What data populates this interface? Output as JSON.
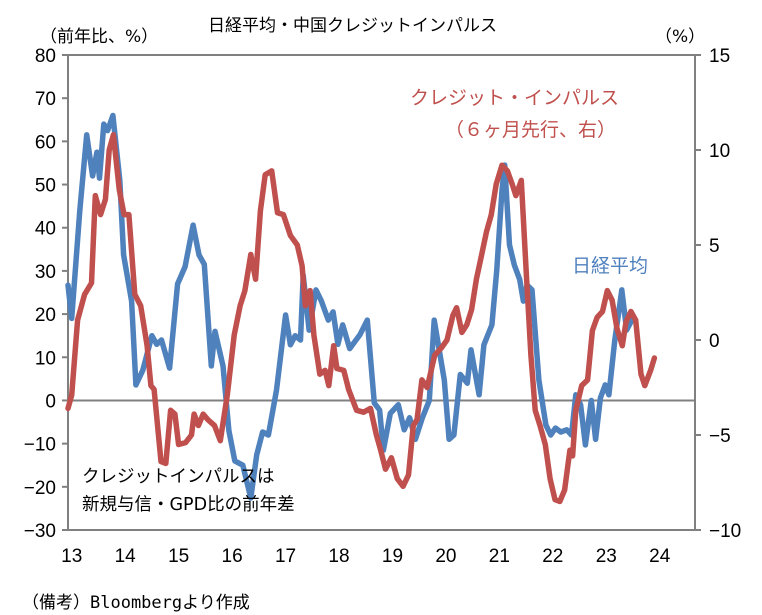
{
  "chart_data": {
    "type": "line",
    "title": "日経平均・中国クレジットインパルス",
    "left_axis": {
      "unit_label": "（前年比、%）",
      "ylim": [
        -30,
        80
      ],
      "ticks": [
        80,
        70,
        60,
        50,
        40,
        30,
        20,
        10,
        0,
        -10,
        -20,
        -30
      ]
    },
    "right_axis": {
      "unit_label": "（%）",
      "ylim": [
        -10,
        15
      ],
      "ticks": [
        15,
        10,
        5,
        0,
        -5,
        -10
      ]
    },
    "x_axis": {
      "xlim": [
        2012.93,
        2024.66
      ],
      "tick_values": [
        2013,
        2014,
        2015,
        2016,
        2017,
        2018,
        2019,
        2020,
        2021,
        2022,
        2023,
        2024
      ],
      "tick_labels": [
        "13",
        "14",
        "15",
        "16",
        "17",
        "18",
        "19",
        "20",
        "21",
        "22",
        "23",
        "24"
      ]
    },
    "grid": false,
    "series": [
      {
        "name": "日経平均",
        "axis": "left",
        "color": "#4f81bd",
        "points": [
          [
            2012.93,
            26.7
          ],
          [
            2013.0,
            19.0
          ],
          [
            2013.15,
            44.0
          ],
          [
            2013.28,
            61.5
          ],
          [
            2013.39,
            52.0
          ],
          [
            2013.47,
            57.5
          ],
          [
            2013.52,
            51.5
          ],
          [
            2013.6,
            64.0
          ],
          [
            2013.67,
            62.5
          ],
          [
            2013.77,
            66.0
          ],
          [
            2013.9,
            51.0
          ],
          [
            2013.97,
            33.7
          ],
          [
            2014.12,
            23.0
          ],
          [
            2014.2,
            3.6
          ],
          [
            2014.33,
            7.0
          ],
          [
            2014.5,
            15.0
          ],
          [
            2014.59,
            13.0
          ],
          [
            2014.68,
            14.0
          ],
          [
            2014.83,
            7.5
          ],
          [
            2014.98,
            27.0
          ],
          [
            2015.12,
            31.0
          ],
          [
            2015.27,
            40.6
          ],
          [
            2015.38,
            33.7
          ],
          [
            2015.48,
            31.5
          ],
          [
            2015.61,
            8.0
          ],
          [
            2015.68,
            16.0
          ],
          [
            2015.83,
            8.0
          ],
          [
            2015.94,
            -7.0
          ],
          [
            2016.05,
            -14.0
          ],
          [
            2016.2,
            -15.0
          ],
          [
            2016.35,
            -22.6
          ],
          [
            2016.46,
            -12.6
          ],
          [
            2016.57,
            -7.3
          ],
          [
            2016.68,
            -8.0
          ],
          [
            2016.83,
            2.4
          ],
          [
            2017.0,
            19.8
          ],
          [
            2017.09,
            12.9
          ],
          [
            2017.18,
            15.0
          ],
          [
            2017.28,
            14.0
          ],
          [
            2017.33,
            29.0
          ],
          [
            2017.44,
            16.3
          ],
          [
            2017.57,
            25.6
          ],
          [
            2017.67,
            23.0
          ],
          [
            2017.8,
            18.6
          ],
          [
            2017.89,
            20.5
          ],
          [
            2017.98,
            13.0
          ],
          [
            2018.07,
            17.5
          ],
          [
            2018.2,
            12.0
          ],
          [
            2018.39,
            15.2
          ],
          [
            2018.53,
            18.6
          ],
          [
            2018.66,
            -0.6
          ],
          [
            2018.76,
            -2.2
          ],
          [
            2018.83,
            -11.5
          ],
          [
            2018.96,
            -3.0
          ],
          [
            2019.11,
            -1.0
          ],
          [
            2019.22,
            -6.8
          ],
          [
            2019.32,
            -4.0
          ],
          [
            2019.43,
            -9.0
          ],
          [
            2019.56,
            -4.0
          ],
          [
            2019.69,
            0.0
          ],
          [
            2019.78,
            18.6
          ],
          [
            2019.97,
            4.7
          ],
          [
            2020.06,
            -9.0
          ],
          [
            2020.15,
            -8.0
          ],
          [
            2020.27,
            6.0
          ],
          [
            2020.4,
            4.0
          ],
          [
            2020.47,
            11.7
          ],
          [
            2020.62,
            1.3
          ],
          [
            2020.71,
            12.9
          ],
          [
            2020.86,
            17.5
          ],
          [
            2020.95,
            30.0
          ],
          [
            2021.05,
            48.7
          ],
          [
            2021.1,
            54.5
          ],
          [
            2021.19,
            36.0
          ],
          [
            2021.28,
            31.4
          ],
          [
            2021.38,
            28.0
          ],
          [
            2021.45,
            23.0
          ],
          [
            2021.52,
            26.7
          ],
          [
            2021.61,
            25.6
          ],
          [
            2021.74,
            4.7
          ],
          [
            2021.87,
            -5.7
          ],
          [
            2021.96,
            -8.0
          ],
          [
            2022.05,
            -6.4
          ],
          [
            2022.15,
            -7.3
          ],
          [
            2022.26,
            -6.8
          ],
          [
            2022.35,
            -8.0
          ],
          [
            2022.43,
            1.3
          ],
          [
            2022.52,
            -1.0
          ],
          [
            2022.61,
            -10.3
          ],
          [
            2022.72,
            0.0
          ],
          [
            2022.8,
            -9.0
          ],
          [
            2022.89,
            0.6
          ],
          [
            2022.98,
            3.6
          ],
          [
            2023.05,
            1.3
          ],
          [
            2023.16,
            14.0
          ],
          [
            2023.24,
            21.0
          ],
          [
            2023.29,
            25.6
          ],
          [
            2023.38,
            16.3
          ],
          [
            2023.48,
            18.6
          ]
        ]
      },
      {
        "name": "クレジット・インパルス（６ヶ月先行、右）",
        "axis": "right",
        "color": "#c0504d",
        "points": [
          [
            2012.93,
            -3.6
          ],
          [
            2013.0,
            -2.9
          ],
          [
            2013.11,
            1.05
          ],
          [
            2013.24,
            2.4
          ],
          [
            2013.37,
            3.0
          ],
          [
            2013.44,
            7.6
          ],
          [
            2013.54,
            6.6
          ],
          [
            2013.63,
            7.4
          ],
          [
            2013.7,
            10.0
          ],
          [
            2013.78,
            10.8
          ],
          [
            2013.89,
            7.9
          ],
          [
            2013.98,
            6.6
          ],
          [
            2014.07,
            6.6
          ],
          [
            2014.18,
            2.4
          ],
          [
            2014.29,
            1.8
          ],
          [
            2014.41,
            -0.3
          ],
          [
            2014.48,
            -2.4
          ],
          [
            2014.54,
            -2.6
          ],
          [
            2014.67,
            -6.4
          ],
          [
            2014.76,
            -6.5
          ],
          [
            2014.85,
            -3.7
          ],
          [
            2014.93,
            -3.9
          ],
          [
            2015.0,
            -5.5
          ],
          [
            2015.13,
            -5.4
          ],
          [
            2015.24,
            -5.0
          ],
          [
            2015.29,
            -3.9
          ],
          [
            2015.37,
            -4.5
          ],
          [
            2015.46,
            -3.9
          ],
          [
            2015.55,
            -4.2
          ],
          [
            2015.67,
            -4.5
          ],
          [
            2015.78,
            -5.3
          ],
          [
            2015.91,
            -2.9
          ],
          [
            2016.04,
            0.26
          ],
          [
            2016.15,
            1.8
          ],
          [
            2016.24,
            2.6
          ],
          [
            2016.35,
            4.5
          ],
          [
            2016.44,
            3.2
          ],
          [
            2016.53,
            6.8
          ],
          [
            2016.62,
            8.7
          ],
          [
            2016.74,
            8.9
          ],
          [
            2016.85,
            6.7
          ],
          [
            2016.96,
            6.6
          ],
          [
            2017.09,
            5.5
          ],
          [
            2017.22,
            5.0
          ],
          [
            2017.31,
            3.9
          ],
          [
            2017.37,
            1.8
          ],
          [
            2017.46,
            2.6
          ],
          [
            2017.53,
            0.26
          ],
          [
            2017.64,
            -1.8
          ],
          [
            2017.74,
            -1.6
          ],
          [
            2017.81,
            -2.4
          ],
          [
            2017.9,
            -0.3
          ],
          [
            2017.96,
            -1.5
          ],
          [
            2018.09,
            -1.6
          ],
          [
            2018.18,
            -2.6
          ],
          [
            2018.33,
            -3.7
          ],
          [
            2018.46,
            -3.8
          ],
          [
            2018.59,
            -3.6
          ],
          [
            2018.7,
            -5.0
          ],
          [
            2018.78,
            -5.8
          ],
          [
            2018.87,
            -6.8
          ],
          [
            2018.98,
            -6.2
          ],
          [
            2019.09,
            -7.3
          ],
          [
            2019.2,
            -7.7
          ],
          [
            2019.3,
            -7.1
          ],
          [
            2019.39,
            -4.5
          ],
          [
            2019.46,
            -4.2
          ],
          [
            2019.55,
            -2.1
          ],
          [
            2019.65,
            -2.5
          ],
          [
            2019.79,
            -0.8
          ],
          [
            2019.92,
            -0.4
          ],
          [
            2020.02,
            0.0
          ],
          [
            2020.13,
            1.3
          ],
          [
            2020.2,
            1.7
          ],
          [
            2020.3,
            0.4
          ],
          [
            2020.39,
            0.8
          ],
          [
            2020.48,
            1.6
          ],
          [
            2020.57,
            3.2
          ],
          [
            2020.67,
            4.5
          ],
          [
            2020.76,
            5.7
          ],
          [
            2020.85,
            6.6
          ],
          [
            2020.94,
            8.2
          ],
          [
            2021.05,
            9.2
          ],
          [
            2021.15,
            8.9
          ],
          [
            2021.24,
            8.2
          ],
          [
            2021.31,
            7.6
          ],
          [
            2021.41,
            8.4
          ],
          [
            2021.5,
            3.7
          ],
          [
            2021.59,
            -0.8
          ],
          [
            2021.67,
            -3.7
          ],
          [
            2021.76,
            -4.5
          ],
          [
            2021.86,
            -5.5
          ],
          [
            2021.95,
            -7.3
          ],
          [
            2022.04,
            -8.4
          ],
          [
            2022.13,
            -8.5
          ],
          [
            2022.22,
            -7.9
          ],
          [
            2022.32,
            -5.8
          ],
          [
            2022.37,
            -6.1
          ],
          [
            2022.43,
            -3.7
          ],
          [
            2022.54,
            -2.4
          ],
          [
            2022.65,
            -2.1
          ],
          [
            2022.74,
            0.5
          ],
          [
            2022.83,
            1.2
          ],
          [
            2022.93,
            1.5
          ],
          [
            2023.02,
            2.6
          ],
          [
            2023.11,
            2.1
          ],
          [
            2023.2,
            0.6
          ],
          [
            2023.3,
            -0.3
          ],
          [
            2023.37,
            0.95
          ],
          [
            2023.46,
            1.5
          ],
          [
            2023.55,
            1.05
          ],
          [
            2023.65,
            -1.8
          ],
          [
            2023.72,
            -2.4
          ],
          [
            2023.83,
            -1.6
          ],
          [
            2023.9,
            -0.95
          ]
        ]
      }
    ],
    "annotations": {
      "red_label_line1": "クレジット・インパルス",
      "red_label_line2": "（６ヶ月先行、右）",
      "blue_label": "日経平均",
      "note_line1": "クレジットインパルスは",
      "note_line2": "新規与信・GPD比の前年差"
    },
    "legend": "inline-labels"
  },
  "source_note": "（備考）Bloombergより作成"
}
